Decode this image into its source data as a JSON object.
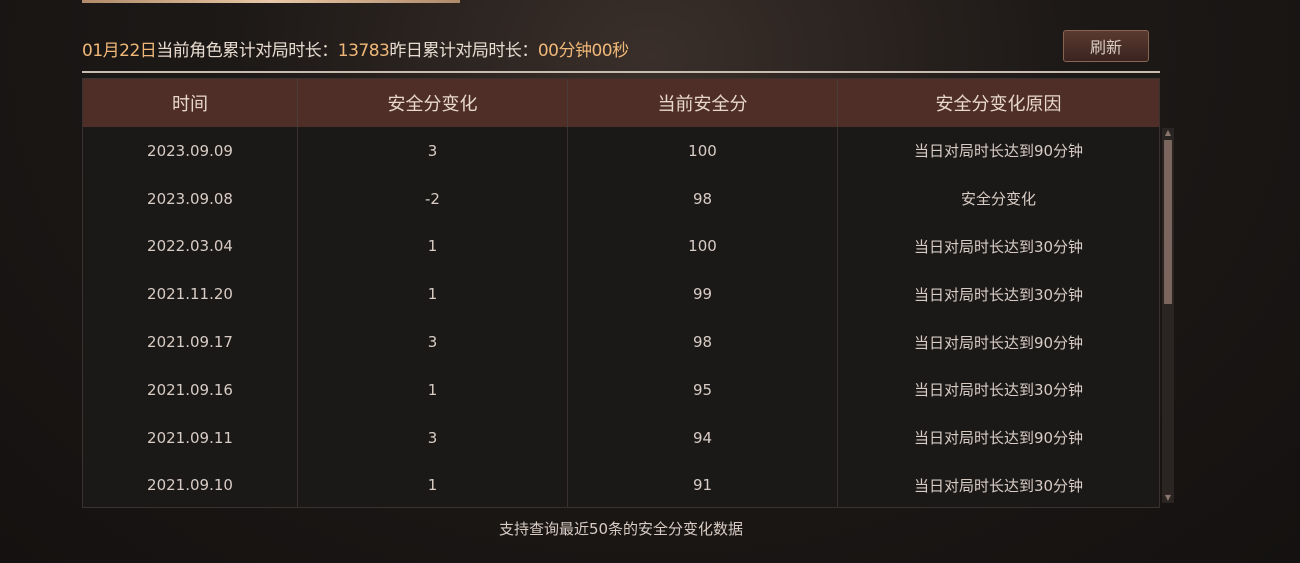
{
  "summary": {
    "date": "01月22日",
    "label1": "当前角色累计对局时长：",
    "total": "13783",
    "label2": "昨日累计对局时长：",
    "yesterday": "00分钟00秒"
  },
  "refresh_label": "刷新",
  "columns": [
    "时间",
    "安全分变化",
    "当前安全分",
    "安全分变化原因"
  ],
  "rows": [
    [
      "2023.09.09",
      "3",
      "100",
      "当日对局时长达到90分钟"
    ],
    [
      "2023.09.08",
      "-2",
      "98",
      "安全分变化"
    ],
    [
      "2022.03.04",
      "1",
      "100",
      "当日对局时长达到30分钟"
    ],
    [
      "2021.11.20",
      "1",
      "99",
      "当日对局时长达到30分钟"
    ],
    [
      "2021.09.17",
      "3",
      "98",
      "当日对局时长达到90分钟"
    ],
    [
      "2021.09.16",
      "1",
      "95",
      "当日对局时长达到30分钟"
    ],
    [
      "2021.09.11",
      "3",
      "94",
      "当日对局时长达到90分钟"
    ],
    [
      "2021.09.10",
      "1",
      "91",
      "当日对局时长达到30分钟"
    ]
  ],
  "footer_note": "支持查询最近50条的安全分变化数据"
}
